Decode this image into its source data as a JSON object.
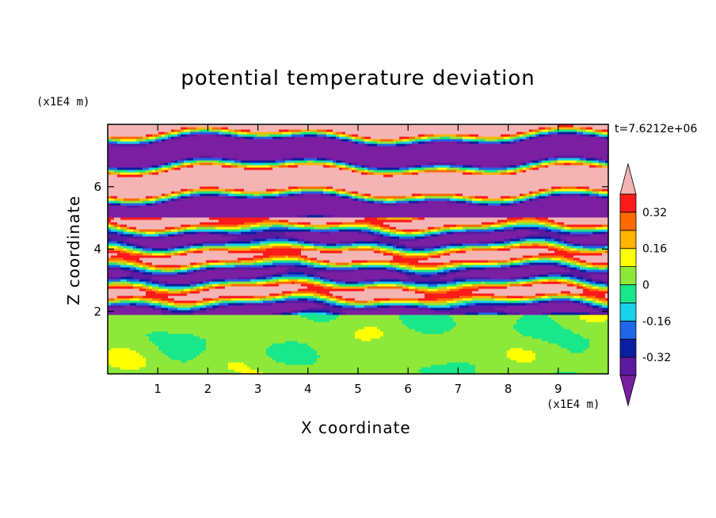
{
  "chart_data": {
    "type": "heatmap",
    "title": "potential temperature deviation",
    "xlabel": "X coordinate",
    "ylabel": "Z coordinate",
    "x_unit": "(x1E4 m)",
    "y_unit": "(x1E4 m)",
    "time_label": "t=7.6212e+06",
    "xlim": [
      0,
      10
    ],
    "ylim": [
      0,
      8
    ],
    "x_ticks": [
      1,
      2,
      3,
      4,
      5,
      6,
      7,
      8,
      9
    ],
    "y_ticks": [
      2,
      4,
      6
    ],
    "colorbar": {
      "levels": [
        -0.4,
        -0.32,
        -0.24,
        -0.16,
        -0.08,
        0,
        0.08,
        0.16,
        0.24,
        0.32,
        0.4
      ],
      "tick_values": [
        -0.32,
        -0.16,
        0,
        0.16,
        0.32
      ],
      "tick_labels": [
        "-0.32",
        "-0.16",
        "0",
        "0.16",
        "0.32"
      ],
      "under_color": "#7a1fa2",
      "over_color": "#f5b4b4",
      "band_colors": [
        "#5a1a9e",
        "#0b1fa0",
        "#1f66e8",
        "#1ad1e8",
        "#1ae68a",
        "#8ee83a",
        "#ffff00",
        "#ffb400",
        "#ff6a00",
        "#ff1a1a"
      ]
    },
    "field_description": {
      "layers": [
        {
          "z_range": [
            0,
            1.9
          ],
          "values": "mostly 0 to 0.08 with patches -0.08 to 0"
        },
        {
          "z_range": [
            1.9,
            5.0
          ],
          "values": "strongly banded, full range -0.4 to 0.4"
        },
        {
          "z_range": [
            5.0,
            8.0
          ],
          "values": "alternating layers below -0.4 and above 0.4"
        }
      ]
    }
  },
  "colors": {
    "background": "#ffffff",
    "axis": "#000000"
  }
}
